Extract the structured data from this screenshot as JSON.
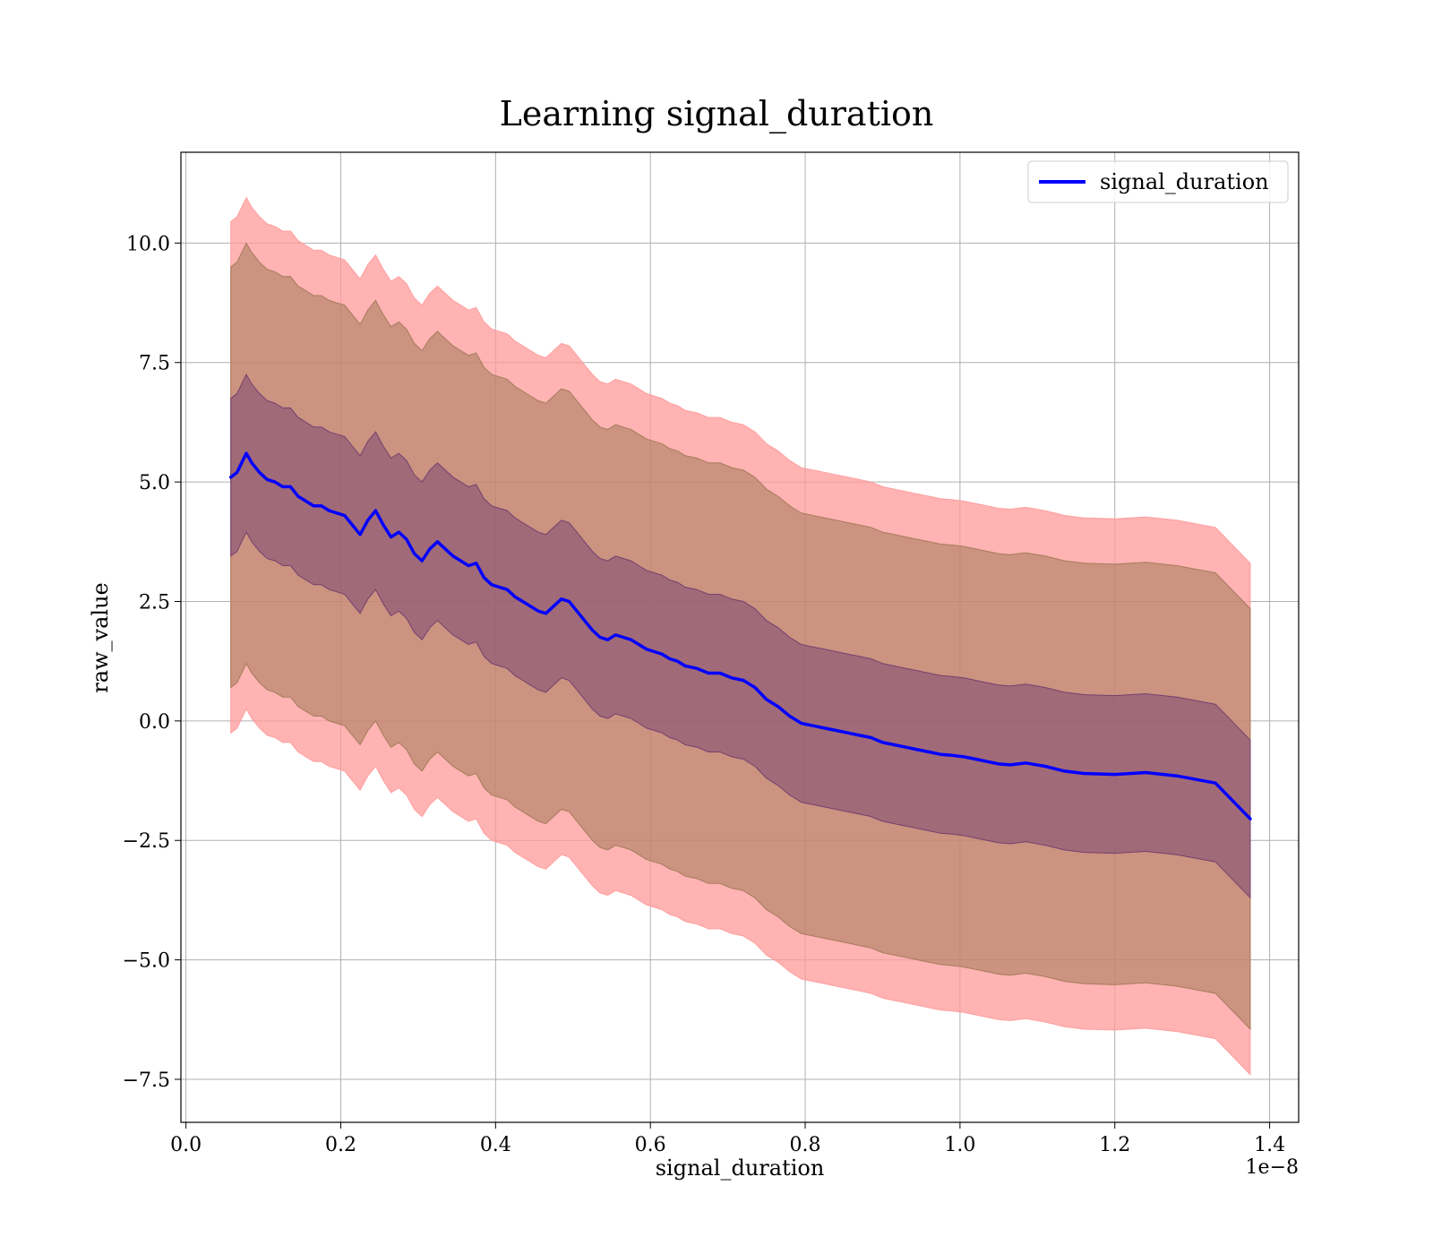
{
  "chart_data": {
    "type": "area",
    "title": "Learning signal_duration",
    "xlabel": "signal_duration",
    "ylabel": "raw_value",
    "x_offset_label": "1e−8",
    "xlim": [
      -0.0065,
      1.4375
    ],
    "ylim": [
      -8.4,
      11.9
    ],
    "x_ticks": [
      0.0,
      0.2,
      0.4,
      0.6,
      0.8,
      1.0,
      1.2,
      1.4
    ],
    "x_tick_labels": [
      "0.0",
      "0.2",
      "0.4",
      "0.6",
      "0.8",
      "1.0",
      "1.2",
      "1.4"
    ],
    "y_ticks": [
      -7.5,
      -5.0,
      -2.5,
      0.0,
      2.5,
      5.0,
      7.5,
      10.0
    ],
    "y_tick_labels": [
      "−7.5",
      "−5.0",
      "−2.5",
      "0.0",
      "2.5",
      "5.0",
      "7.5",
      "10.0"
    ],
    "grid": true,
    "legend_position": "top-right",
    "colors": {
      "line": "#0000ff",
      "band_outer": "#ff9999",
      "band_middle": "#a07855",
      "band_inner": "#6e3a6e"
    },
    "band_opacity": [
      0.75,
      0.55,
      0.45
    ],
    "series": [
      {
        "name": "signal_duration",
        "x": [
          0.058,
          0.066,
          0.072,
          0.078,
          0.085,
          0.095,
          0.105,
          0.115,
          0.125,
          0.135,
          0.145,
          0.155,
          0.165,
          0.175,
          0.185,
          0.195,
          0.205,
          0.215,
          0.225,
          0.235,
          0.245,
          0.255,
          0.265,
          0.275,
          0.285,
          0.295,
          0.305,
          0.315,
          0.325,
          0.335,
          0.345,
          0.355,
          0.365,
          0.375,
          0.385,
          0.395,
          0.405,
          0.415,
          0.425,
          0.435,
          0.445,
          0.455,
          0.465,
          0.475,
          0.485,
          0.495,
          0.505,
          0.515,
          0.525,
          0.535,
          0.545,
          0.555,
          0.565,
          0.575,
          0.585,
          0.595,
          0.605,
          0.615,
          0.625,
          0.635,
          0.645,
          0.66,
          0.675,
          0.69,
          0.705,
          0.72,
          0.735,
          0.75,
          0.765,
          0.78,
          0.795,
          0.81,
          0.825,
          0.84,
          0.855,
          0.87,
          0.885,
          0.9,
          0.915,
          0.93,
          0.945,
          0.96,
          0.975,
          0.99,
          1.005,
          1.02,
          1.035,
          1.05,
          1.065,
          1.085,
          1.11,
          1.135,
          1.16,
          1.2,
          1.24,
          1.28,
          1.33,
          1.375
        ],
        "y": [
          5.1,
          5.2,
          5.4,
          5.6,
          5.4,
          5.2,
          5.05,
          5.0,
          4.9,
          4.9,
          4.7,
          4.6,
          4.5,
          4.5,
          4.4,
          4.35,
          4.3,
          4.1,
          3.9,
          4.2,
          4.4,
          4.1,
          3.85,
          3.95,
          3.8,
          3.5,
          3.35,
          3.6,
          3.75,
          3.6,
          3.45,
          3.35,
          3.25,
          3.3,
          3.0,
          2.85,
          2.8,
          2.75,
          2.6,
          2.5,
          2.4,
          2.3,
          2.25,
          2.4,
          2.55,
          2.5,
          2.3,
          2.1,
          1.9,
          1.75,
          1.7,
          1.8,
          1.75,
          1.7,
          1.6,
          1.5,
          1.45,
          1.4,
          1.3,
          1.25,
          1.15,
          1.1,
          1.0,
          1.0,
          0.9,
          0.85,
          0.7,
          0.45,
          0.3,
          0.1,
          -0.05,
          -0.1,
          -0.15,
          -0.2,
          -0.25,
          -0.3,
          -0.35,
          -0.45,
          -0.5,
          -0.55,
          -0.6,
          -0.65,
          -0.7,
          -0.72,
          -0.75,
          -0.8,
          -0.85,
          -0.9,
          -0.92,
          -0.88,
          -0.95,
          -1.05,
          -1.1,
          -1.12,
          -1.08,
          -1.15,
          -1.3,
          -2.05
        ],
        "band_inner_halfwidth": 1.65,
        "band_middle_halfwidth": 4.4,
        "band_outer_halfwidth": 5.35
      }
    ]
  }
}
